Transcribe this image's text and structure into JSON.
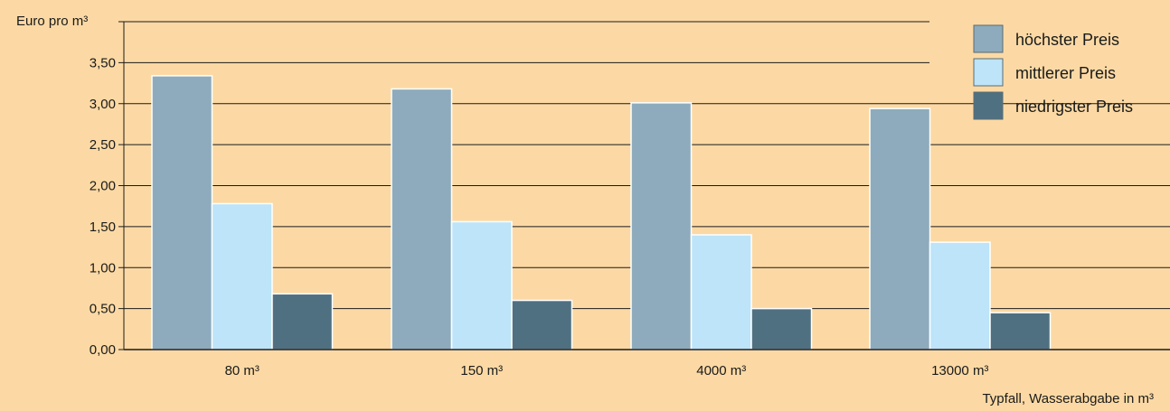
{
  "chart_data": {
    "type": "bar",
    "ylabel": "Euro pro m³",
    "xlabel": "Typfall, Wasserabgabe in m³",
    "categories": [
      "80 m³",
      "150 m³",
      "4000 m³",
      "13000 m³"
    ],
    "series": [
      {
        "name": "höchster Preis",
        "color": "#8dabbc",
        "values": [
          3.34,
          3.18,
          3.01,
          2.94
        ]
      },
      {
        "name": "mittlerer Preis",
        "color": "#bde4f8",
        "values": [
          1.78,
          1.56,
          1.4,
          1.31
        ]
      },
      {
        "name": "niedrigster Preis",
        "color": "#4f7080",
        "values": [
          0.68,
          0.6,
          0.5,
          0.45
        ]
      }
    ],
    "yticks": [
      "0,00",
      "0,50",
      "1,00",
      "1,50",
      "2,00",
      "2,50",
      "3,00",
      "3,50"
    ],
    "ylim": [
      0,
      4
    ],
    "grid": true,
    "legend": "top-right"
  },
  "colors": {
    "background": "#fcd9a4",
    "grid": "#1a1a1a",
    "text": "#1a1a1a"
  }
}
